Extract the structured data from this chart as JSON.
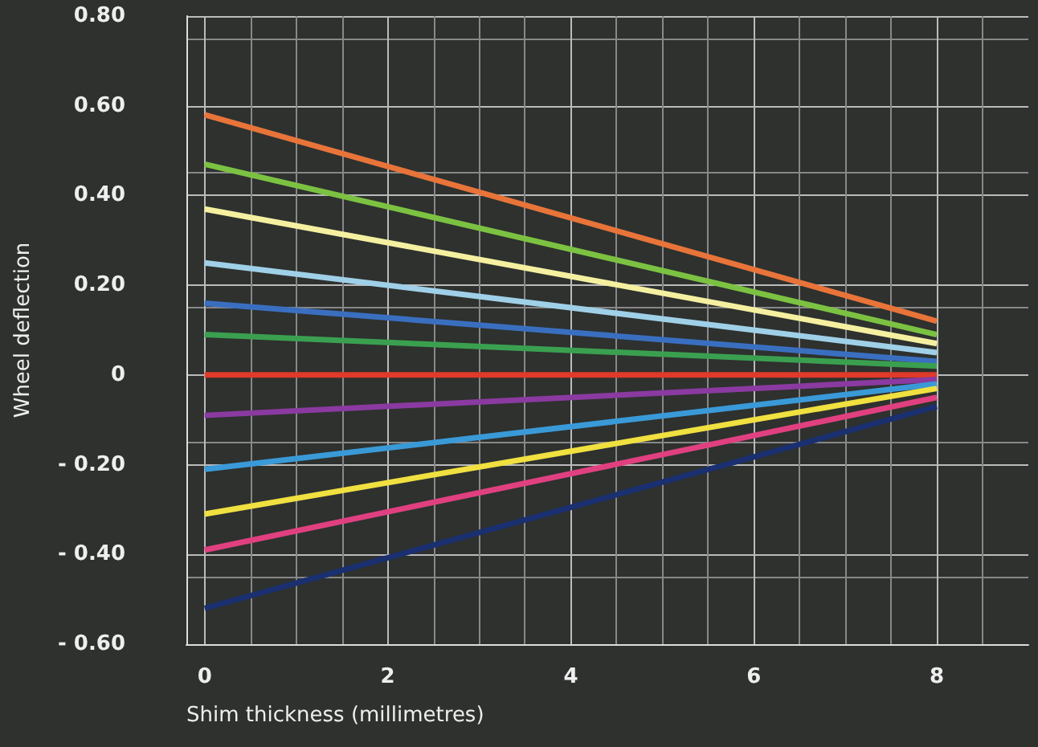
{
  "chart_data": {
    "type": "line",
    "xlabel": "Shim thickness (millimetres)",
    "ylabel": "Wheel deflection",
    "x": [
      0,
      8
    ],
    "xlim": [
      -0.2,
      9
    ],
    "xticks": [
      0,
      2,
      4,
      6,
      8
    ],
    "ylim": [
      -0.6,
      0.8
    ],
    "yticks": [
      {
        "value": -0.6,
        "label": "- 0.60"
      },
      {
        "value": -0.4,
        "label": "- 0.40"
      },
      {
        "value": -0.2,
        "label": "- 0.20"
      },
      {
        "value": 0,
        "label": "0"
      },
      {
        "value": 0.2,
        "label": "0.20"
      },
      {
        "value": 0.4,
        "label": "0.40"
      },
      {
        "value": 0.6,
        "label": "0.60"
      },
      {
        "value": 0.8,
        "label": "0.80"
      }
    ],
    "grid": true,
    "marker": "none",
    "line_style": "solid",
    "series": [
      {
        "color": "#e8743a",
        "values": [
          0.58,
          0.12
        ]
      },
      {
        "color": "#7cc242",
        "values": [
          0.47,
          0.09
        ]
      },
      {
        "color": "#f4f0a0",
        "values": [
          0.37,
          0.07
        ]
      },
      {
        "color": "#9fd0e8",
        "values": [
          0.25,
          0.05
        ]
      },
      {
        "color": "#3a6fc0",
        "values": [
          0.16,
          0.03
        ]
      },
      {
        "color": "#3aa050",
        "values": [
          0.09,
          0.02
        ]
      },
      {
        "color": "#e03a2a",
        "values": [
          0,
          0
        ]
      },
      {
        "color": "#8a3aa0",
        "values": [
          -0.09,
          -0.01
        ]
      },
      {
        "color": "#3a9ad8",
        "values": [
          -0.21,
          -0.02
        ]
      },
      {
        "color": "#f0e040",
        "values": [
          -0.31,
          -0.03
        ]
      },
      {
        "color": "#e04080",
        "values": [
          -0.39,
          -0.05
        ]
      },
      {
        "color": "#1a3070",
        "values": [
          -0.52,
          -0.07
        ]
      }
    ]
  }
}
